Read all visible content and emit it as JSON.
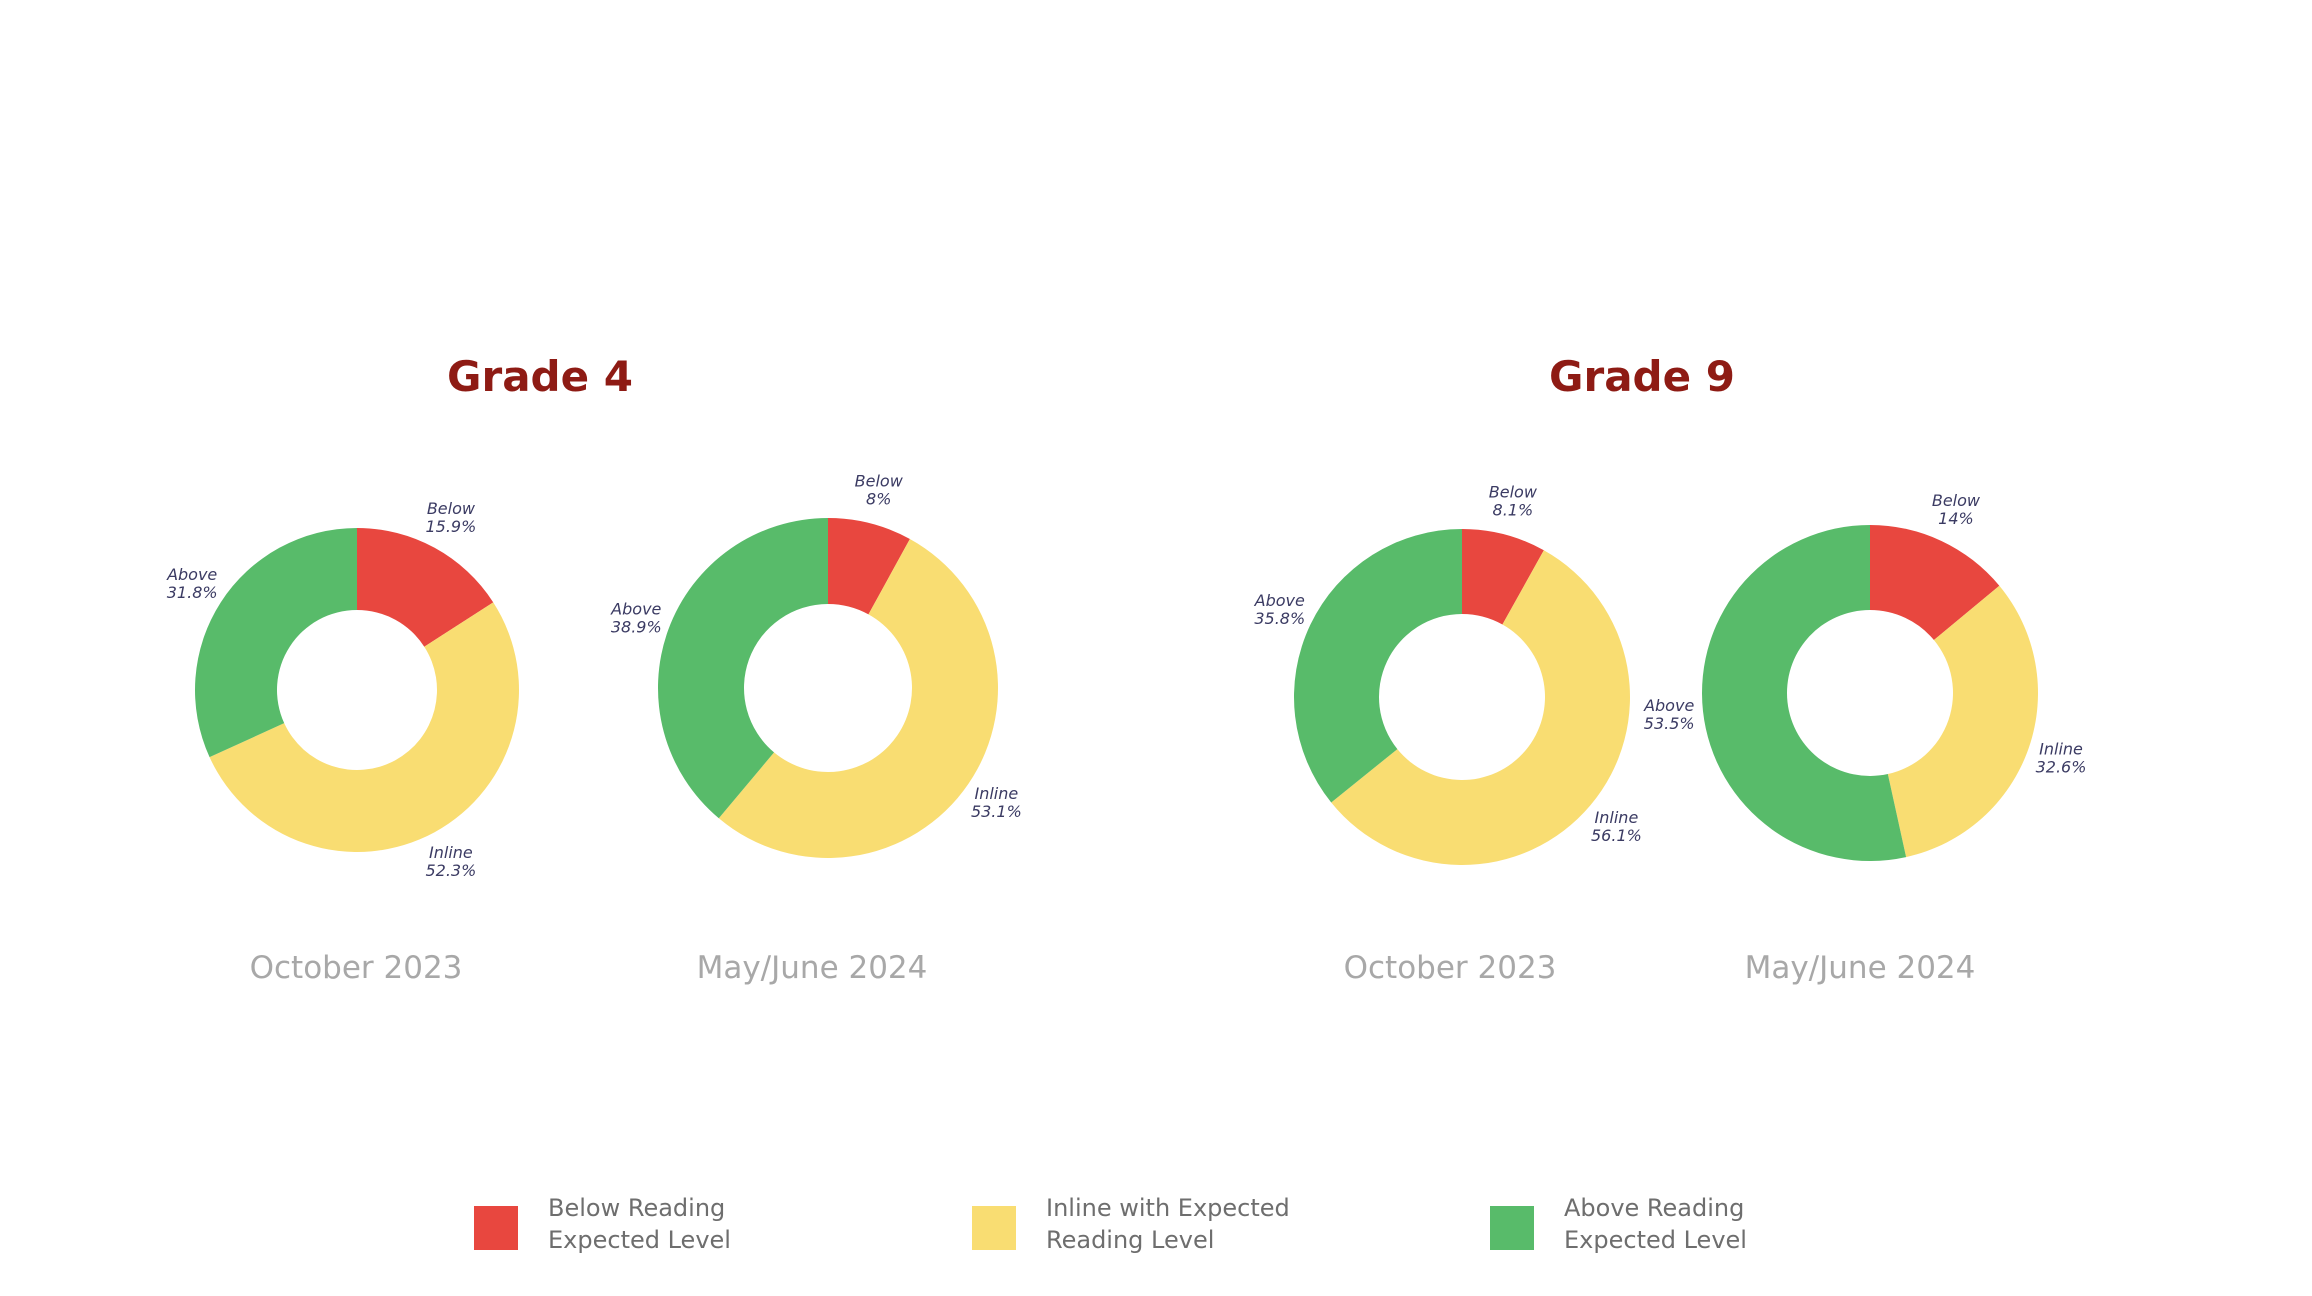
{
  "groups": [
    {
      "title": "Grade 4"
    },
    {
      "title": "Grade 9"
    }
  ],
  "chart_data": [
    {
      "type": "pie",
      "group": "Grade 4",
      "title": "October 2023",
      "slices": [
        {
          "label": "Below",
          "value": 15.9,
          "display": "15.9%",
          "color": "#e8473f"
        },
        {
          "label": "Inline",
          "value": 52.3,
          "display": "52.3%",
          "color": "#f9dd72"
        },
        {
          "label": "Above",
          "value": 31.8,
          "display": "31.8%",
          "color": "#58bb6a"
        }
      ]
    },
    {
      "type": "pie",
      "group": "Grade 4",
      "title": "May/June 2024",
      "slices": [
        {
          "label": "Below",
          "value": 8,
          "display": "8%",
          "color": "#e8473f"
        },
        {
          "label": "Inline",
          "value": 53.1,
          "display": "53.1%",
          "color": "#f9dd72"
        },
        {
          "label": "Above",
          "value": 38.9,
          "display": "38.9%",
          "color": "#58bb6a"
        }
      ]
    },
    {
      "type": "pie",
      "group": "Grade 9",
      "title": "October 2023",
      "slices": [
        {
          "label": "Below",
          "value": 8.1,
          "display": "8.1%",
          "color": "#e8473f"
        },
        {
          "label": "Inline",
          "value": 56.1,
          "display": "56.1%",
          "color": "#f9dd72"
        },
        {
          "label": "Above",
          "value": 35.8,
          "display": "35.8%",
          "color": "#58bb6a"
        }
      ]
    },
    {
      "type": "pie",
      "group": "Grade 9",
      "title": "May/June 2024",
      "slices": [
        {
          "label": "Below",
          "value": 14,
          "display": "14%",
          "color": "#e8473f"
        },
        {
          "label": "Inline",
          "value": 32.6,
          "display": "32.6%",
          "color": "#f9dd72"
        },
        {
          "label": "Above",
          "value": 53.5,
          "display": "53.5%",
          "color": "#58bb6a"
        }
      ]
    }
  ],
  "legend": [
    {
      "line1": "Below Reading",
      "line2": "Expected Level",
      "color": "#e8473f"
    },
    {
      "line1": "Inline with Expected",
      "line2": "Reading Level",
      "color": "#f9dd72"
    },
    {
      "line1": "Above Reading",
      "line2": "Expected Level",
      "color": "#58bb6a"
    }
  ]
}
